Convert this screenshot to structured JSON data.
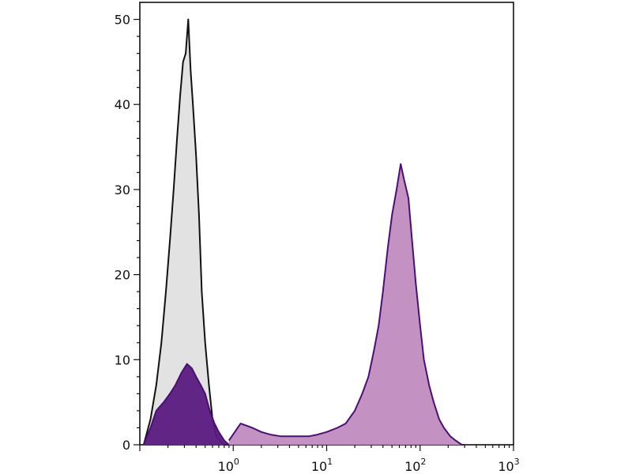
{
  "chart_data": {
    "type": "area",
    "title": "",
    "xlabel": "",
    "ylabel": "",
    "x_scale": "log",
    "xlim": [
      0.1,
      1000
    ],
    "ylim": [
      0,
      52
    ],
    "y_ticks": [
      0,
      10,
      20,
      30,
      40,
      50
    ],
    "x_ticks": [
      {
        "base": "10",
        "exp": "0",
        "value": 1
      },
      {
        "base": "10",
        "exp": "1",
        "value": 10
      },
      {
        "base": "10",
        "exp": "2",
        "value": 100
      },
      {
        "base": "10",
        "exp": "3",
        "value": 1000
      }
    ],
    "grid": false,
    "series": [
      {
        "fill": "#e0e0e0",
        "stroke": "#111111",
        "x": [
          0.11,
          0.13,
          0.15,
          0.17,
          0.19,
          0.21,
          0.23,
          0.25,
          0.27,
          0.29,
          0.31,
          0.33,
          0.35,
          0.37,
          0.4,
          0.43,
          0.46,
          0.5,
          0.55,
          0.6,
          0.66,
          0.72,
          0.8,
          0.9
        ],
        "y": [
          0,
          3,
          7,
          12,
          18,
          24,
          30,
          36,
          41,
          45,
          46,
          50,
          44,
          40,
          34,
          27,
          18,
          12,
          7,
          3,
          1,
          0.5,
          0,
          0
        ]
      },
      {
        "fill": "#5a1a80",
        "stroke": "#4b0f72",
        "x": [
          0.11,
          0.13,
          0.15,
          0.18,
          0.21,
          0.24,
          0.28,
          0.32,
          0.36,
          0.4,
          0.45,
          0.5,
          0.56,
          0.63,
          0.7,
          0.8,
          0.9
        ],
        "y": [
          0,
          2,
          4,
          5,
          6,
          7,
          8.5,
          9.5,
          9,
          8,
          7,
          6,
          4,
          2.5,
          1.5,
          0.5,
          0
        ]
      },
      {
        "fill": "#c08cc0",
        "stroke": "#4b0f72",
        "x": [
          0.9,
          1.2,
          1.6,
          2.0,
          2.5,
          3.2,
          4.0,
          5.0,
          6.5,
          8.0,
          10,
          13,
          16,
          20,
          24,
          28,
          32,
          36,
          40,
          45,
          50,
          56,
          62,
          68,
          75,
          82,
          90,
          100,
          110,
          125,
          140,
          160,
          180,
          210,
          240,
          280,
          300
        ],
        "y": [
          0.5,
          2.5,
          2,
          1.5,
          1.2,
          1,
          1,
          1,
          1,
          1.2,
          1.5,
          2,
          2.5,
          4,
          6,
          8,
          11,
          14,
          18,
          23,
          27,
          30,
          33,
          31,
          29,
          24,
          19,
          14,
          10,
          7,
          5,
          3,
          2,
          1,
          0.5,
          0,
          0
        ]
      }
    ]
  }
}
